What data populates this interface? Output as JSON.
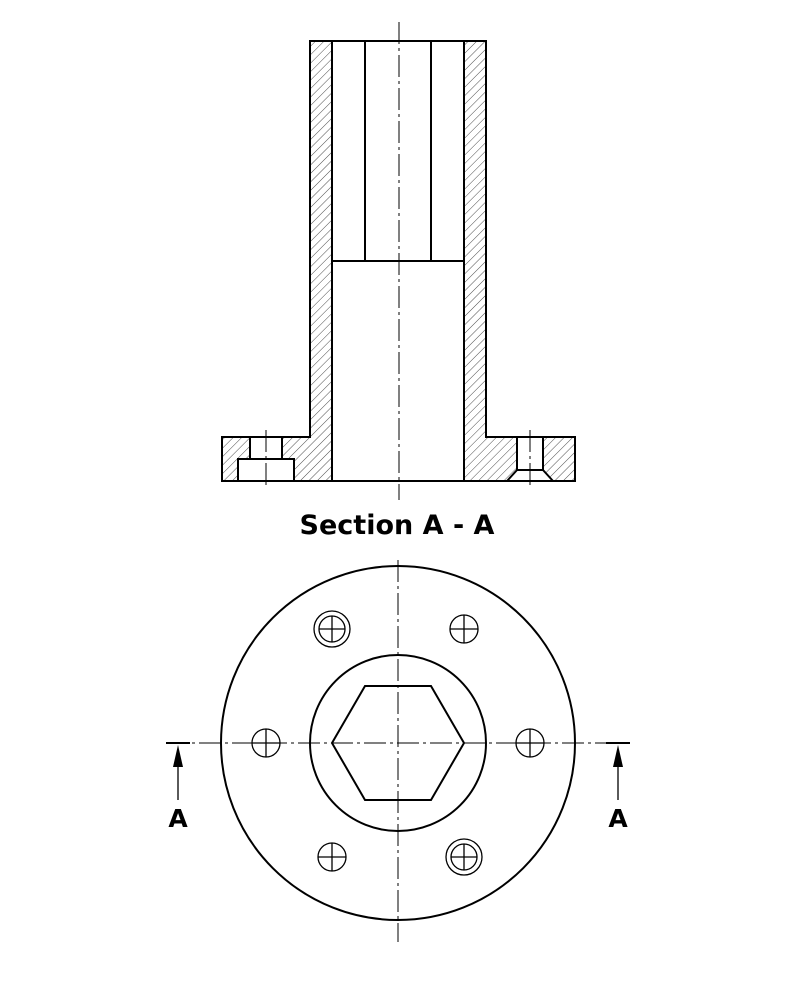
{
  "section_title": "Section A - A",
  "cut_plane": {
    "left_label": "A",
    "right_label": "A"
  }
}
